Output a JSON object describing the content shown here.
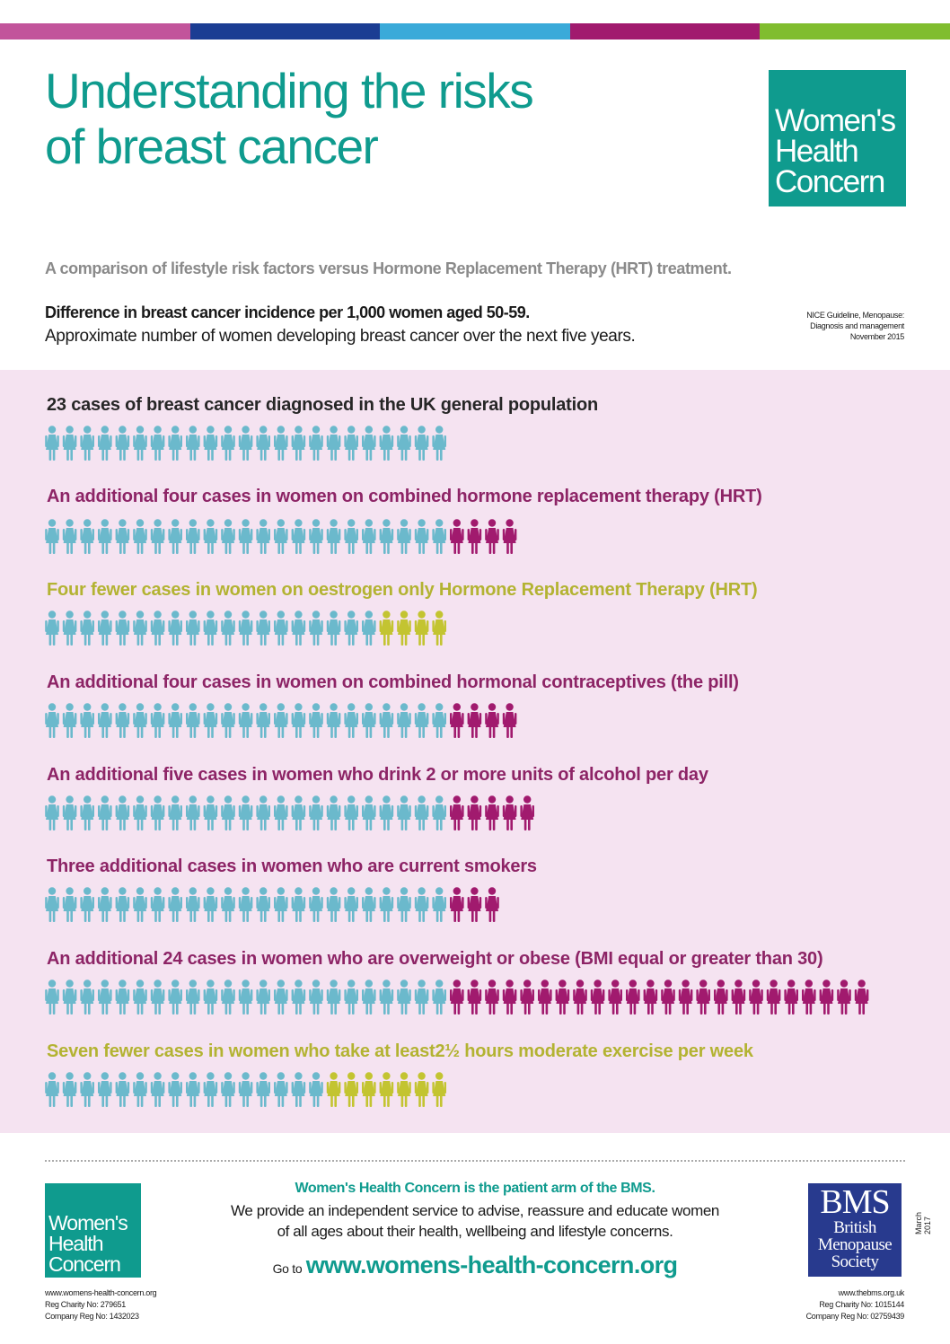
{
  "colors": {
    "teal": "#0f9b8e",
    "pink_bg": "#f5e3f1",
    "base_icon": "#6bb9cc",
    "increase": "#a11a6e",
    "decrease": "#c3c431",
    "purple_text": "#8d2466",
    "olive_text": "#b3b332",
    "bms_blue": "#283a8e"
  },
  "top_bar_colors": [
    "#c2549b",
    "#1b3d93",
    "#3aaad9",
    "#a11a6e",
    "#80bd2f"
  ],
  "header": {
    "title_line1": "Understanding the risks",
    "title_line2": "of breast cancer",
    "logo_line1": "Women's",
    "logo_line2": "Health",
    "logo_line3": "Concern"
  },
  "intro": {
    "subtitle": "A comparison of lifestyle risk factors versus Hormone Replacement Therapy (HRT) treatment.",
    "heading": "Difference in breast cancer incidence per 1,000 women aged 50-59.",
    "subheading": "Approximate number of women developing breast cancer over the next five years.",
    "source_line1": "NICE Guideline, Menopause:",
    "source_line2": "Diagnosis and management",
    "source_line3": "November 2015"
  },
  "rows": [
    {
      "label": "23 cases of breast cancer diagnosed in the UK general population",
      "kind": "base",
      "base": 23,
      "extra": 0,
      "changed": 0
    },
    {
      "label": "An additional four cases in women on combined hormone replacement therapy (HRT)",
      "kind": "increase",
      "base": 23,
      "extra": 4,
      "changed": 0
    },
    {
      "label": "Four fewer  cases in women on oestrogen only Hormone Replacement Therapy (HRT)",
      "kind": "decrease",
      "base": 19,
      "extra": 0,
      "changed": 4
    },
    {
      "label": "An additional four cases in women on combined hormonal contraceptives (the pill)",
      "kind": "increase",
      "base": 23,
      "extra": 4,
      "changed": 0
    },
    {
      "label": "An additional five cases in women who drink 2 or more units of alcohol per day",
      "kind": "increase",
      "base": 23,
      "extra": 5,
      "changed": 0
    },
    {
      "label": "Three additional cases in women who are current smokers",
      "kind": "increase",
      "base": 23,
      "extra": 3,
      "changed": 0
    },
    {
      "label": "An additional 24 cases in women who are overweight or obese (BMI equal or greater than 30)",
      "kind": "increase",
      "base": 23,
      "extra": 24,
      "changed": 0
    },
    {
      "label": "Seven fewer cases in women who take at least2½ hours moderate exercise per week",
      "kind": "decrease",
      "base": 16,
      "extra": 0,
      "changed": 7
    }
  ],
  "footer": {
    "tagline": "Women's Health Concern is the patient arm of the BMS.",
    "desc_line1": "We provide an independent service to advise, reassure and educate women",
    "desc_line2": "of all ages about their health, wellbeing and lifestyle concerns.",
    "goto": "Go to",
    "url": "www.womens-health-concern.org",
    "whc_logo_line1": "Women's",
    "whc_logo_line2": "Health",
    "whc_logo_line3": "Concern",
    "whc_web": "www.womens-health-concern.org",
    "whc_charity": "Reg Charity No: 279651",
    "whc_company": "Company Reg No: 1432023",
    "bms_abbr": "BMS",
    "bms_line1": "British",
    "bms_line2": "Menopause",
    "bms_line3": "Society",
    "bms_web": "www.thebms.org.uk",
    "bms_charity": "Reg Charity No: 1015144",
    "bms_company": "Company Reg No: 02759439",
    "date": "March 2017"
  }
}
